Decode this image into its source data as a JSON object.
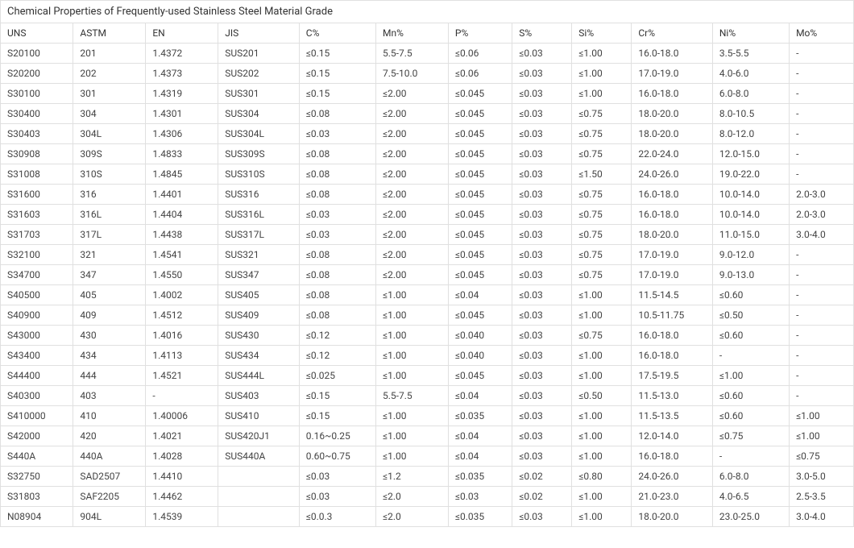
{
  "table": {
    "title": "Chemical Properties of Frequently-used Stainless Steel Material Grade",
    "columns": [
      "UNS",
      "ASTM",
      "EN",
      "JIS",
      "C%",
      "Mn%",
      "P%",
      "S%",
      "Si%",
      "Cr%",
      "Ni%",
      "Mo%"
    ],
    "rows": [
      [
        "S20100",
        "201",
        "1.4372",
        "SUS201",
        "≤0.15",
        "5.5-7.5",
        "≤0.06",
        "≤0.03",
        "≤1.00",
        "16.0-18.0",
        "3.5-5.5",
        "-"
      ],
      [
        "S20200",
        "202",
        "1.4373",
        "SUS202",
        "≤0.15",
        "7.5-10.0",
        "≤0.06",
        "≤0.03",
        "≤1.00",
        "17.0-19.0",
        "4.0-6.0",
        "-"
      ],
      [
        "S30100",
        "301",
        "1.4319",
        "SUS301",
        "≤0.15",
        "≤2.00",
        "≤0.045",
        "≤0.03",
        "≤1.00",
        "16.0-18.0",
        "6.0-8.0",
        "-"
      ],
      [
        "S30400",
        "304",
        "1.4301",
        "SUS304",
        "≤0.08",
        "≤2.00",
        "≤0.045",
        "≤0.03",
        "≤0.75",
        "18.0-20.0",
        "8.0-10.5",
        "-"
      ],
      [
        "S30403",
        "304L",
        "1.4306",
        "SUS304L",
        "≤0.03",
        "≤2.00",
        "≤0.045",
        "≤0.03",
        "≤0.75",
        "18.0-20.0",
        "8.0-12.0",
        "-"
      ],
      [
        "S30908",
        "309S",
        "1.4833",
        "SUS309S",
        "≤0.08",
        "≤2.00",
        "≤0.045",
        "≤0.03",
        "≤0.75",
        "22.0-24.0",
        "12.0-15.0",
        "-"
      ],
      [
        "S31008",
        "310S",
        "1.4845",
        "SUS310S",
        "≤0.08",
        "≤2.00",
        "≤0.045",
        "≤0.03",
        "≤1.50",
        "24.0-26.0",
        "19.0-22.0",
        "-"
      ],
      [
        "S31600",
        "316",
        "1.4401",
        "SUS316",
        "≤0.08",
        "≤2.00",
        "≤0.045",
        "≤0.03",
        "≤0.75",
        "16.0-18.0",
        "10.0-14.0",
        "2.0-3.0"
      ],
      [
        "S31603",
        "316L",
        "1.4404",
        "SUS316L",
        "≤0.03",
        "≤2.00",
        "≤0.045",
        "≤0.03",
        "≤0.75",
        "16.0-18.0",
        "10.0-14.0",
        "2.0-3.0"
      ],
      [
        "S31703",
        "317L",
        "1.4438",
        "SUS317L",
        "≤0.03",
        "≤2.00",
        "≤0.045",
        "≤0.03",
        "≤0.75",
        "18.0-20.0",
        "11.0-15.0",
        "3.0-4.0"
      ],
      [
        "S32100",
        "321",
        "1.4541",
        "SUS321",
        "≤0.08",
        "≤2.00",
        "≤0.045",
        "≤0.03",
        "≤0.75",
        "17.0-19.0",
        "9.0-12.0",
        "-"
      ],
      [
        "S34700",
        "347",
        "1.4550",
        "SUS347",
        "≤0.08",
        "≤2.00",
        "≤0.045",
        "≤0.03",
        "≤0.75",
        "17.0-19.0",
        "9.0-13.0",
        "-"
      ],
      [
        "S40500",
        "405",
        "1.4002",
        "SUS405",
        "≤0.08",
        "≤1.00",
        "≤0.04",
        "≤0.03",
        "≤1.00",
        "11.5-14.5",
        "≤0.60",
        "-"
      ],
      [
        "S40900",
        "409",
        "1.4512",
        "SUS409",
        "≤0.08",
        "≤1.00",
        "≤0.045",
        "≤0.03",
        "≤1.00",
        "10.5-11.75",
        "≤0.50",
        "-"
      ],
      [
        "S43000",
        "430",
        "1.4016",
        "SUS430",
        "≤0.12",
        "≤1.00",
        "≤0.040",
        "≤0.03",
        "≤0.75",
        "16.0-18.0",
        "≤0.60",
        "-"
      ],
      [
        "S43400",
        "434",
        "1.4113",
        "SUS434",
        "≤0.12",
        "≤1.00",
        "≤0.040",
        "≤0.03",
        "≤1.00",
        "16.0-18.0",
        "-",
        "-"
      ],
      [
        "S44400",
        "444",
        "1.4521",
        "SUS444L",
        "≤0.025",
        "≤1.00",
        "≤0.045",
        "≤0.03",
        "≤1.00",
        "17.5-19.5",
        "≤1.00",
        "-"
      ],
      [
        "S40300",
        "403",
        "-",
        "SUS403",
        "≤0.15",
        "5.5-7.5",
        "≤0.04",
        "≤0.03",
        "≤0.50",
        "11.5-13.0",
        "≤0.60",
        "-"
      ],
      [
        "S410000",
        "410",
        "1.40006",
        "SUS410",
        "≤0.15",
        "≤1.00",
        "≤0.035",
        "≤0.03",
        "≤1.00",
        "11.5-13.5",
        "≤0.60",
        "≤1.00"
      ],
      [
        "S42000",
        "420",
        "1.4021",
        "SUS420J1",
        "0.16~0.25",
        "≤1.00",
        "≤0.04",
        "≤0.03",
        "≤1.00",
        "12.0-14.0",
        "≤0.75",
        "≤1.00"
      ],
      [
        "S440A",
        "440A",
        "1.4028",
        "SUS440A",
        "0.60~0.75",
        "≤1.00",
        "≤0.04",
        "≤0.03",
        "≤1.00",
        "16.0-18.0",
        "-",
        "≤0.75"
      ],
      [
        "S32750",
        "SAD2507",
        "1.4410",
        "",
        "≤0.03",
        "≤1.2",
        "≤0.035",
        "≤0.02",
        "≤0.80",
        "24.0-26.0",
        "6.0-8.0",
        "3.0-5.0"
      ],
      [
        "S31803",
        "SAF2205",
        "1.4462",
        "",
        "≤0.03",
        "≤2.0",
        "≤0.03",
        "≤0.02",
        "≤1.00",
        "21.0-23.0",
        "4.0-6.5",
        "2.5-3.5"
      ],
      [
        "N08904",
        "904L",
        "1.4539",
        "",
        "≤0.0.3",
        "≤2.0",
        "≤0.035",
        "≤0.03",
        "≤1.00",
        "18.0-20.0",
        "23.0-25.0",
        "3.0-4.0"
      ]
    ],
    "style": {
      "border_color": "#e0e0e0",
      "text_color": "#333333",
      "cell_text_color": "#444444",
      "background_color": "#ffffff",
      "font_size": 12,
      "title_font_size": 13
    }
  }
}
